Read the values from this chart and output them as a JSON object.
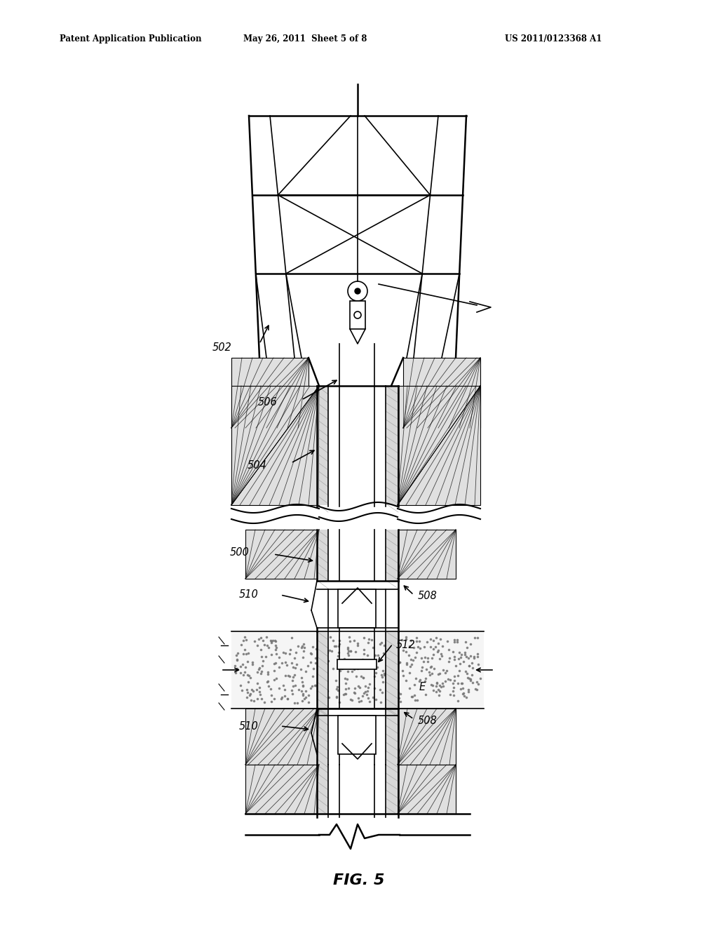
{
  "background_color": "#ffffff",
  "header_left": "Patent Application Publication",
  "header_mid": "May 26, 2011  Sheet 5 of 8",
  "header_right": "US 2011/0123368 A1",
  "figure_label": "FIG. 5"
}
